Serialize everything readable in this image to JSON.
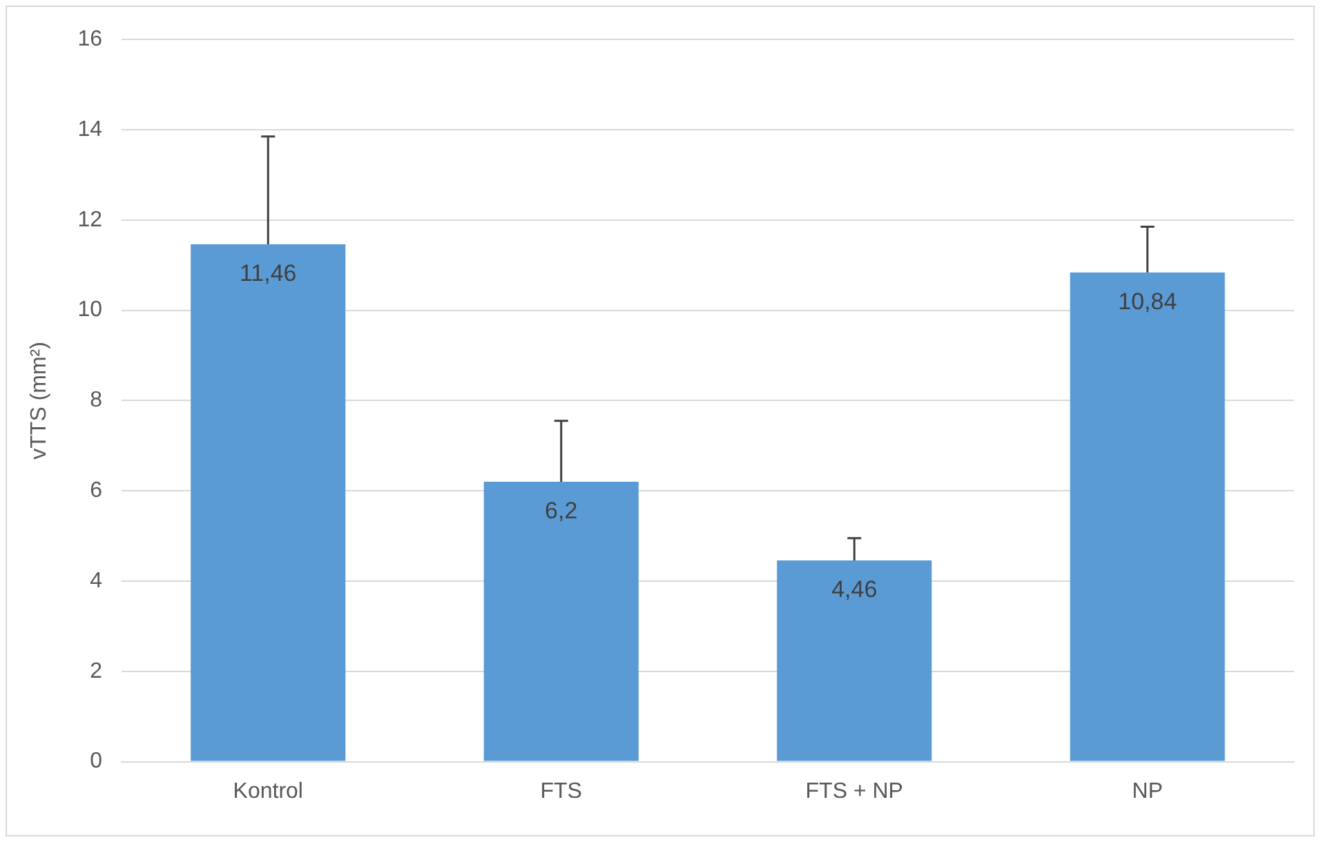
{
  "chart_data": {
    "type": "bar",
    "ylabel": "vTTS (mm²)",
    "categories": [
      "Kontrol",
      "FTS",
      "FTS + NP",
      "NP"
    ],
    "values": [
      11.46,
      6.2,
      4.46,
      10.84
    ],
    "value_labels": [
      "11,46",
      "6,2",
      "4,46",
      "10,84"
    ],
    "errors": [
      [
        11.46,
        13.85
      ],
      [
        6.2,
        7.55
      ],
      [
        4.46,
        4.95
      ],
      [
        10.84,
        11.85
      ]
    ],
    "color": "#5b9bd5",
    "ylim": [
      0,
      16
    ],
    "yticks": [
      0,
      2,
      4,
      6,
      8,
      10,
      12,
      14,
      16
    ],
    "grid": "y",
    "legend": false
  }
}
